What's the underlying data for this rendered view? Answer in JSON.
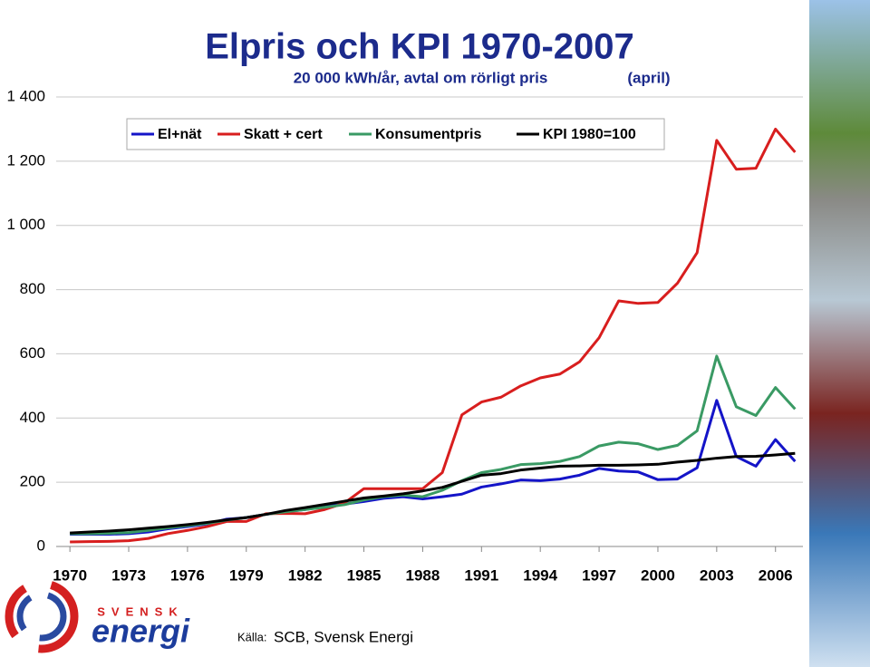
{
  "chart_data": {
    "type": "line",
    "title": "Elpris och KPI 1970-2007",
    "subtitle": "20 000 kWh/år, avtal om rörligt pris",
    "annotation": "(april)",
    "x": [
      1970,
      1971,
      1972,
      1973,
      1974,
      1975,
      1976,
      1977,
      1978,
      1979,
      1980,
      1981,
      1982,
      1983,
      1984,
      1985,
      1986,
      1987,
      1988,
      1989,
      1990,
      1991,
      1992,
      1993,
      1994,
      1995,
      1996,
      1997,
      1998,
      1999,
      2000,
      2001,
      2002,
      2003,
      2004,
      2005,
      2006,
      2007
    ],
    "series": [
      {
        "name": "El+nät",
        "color": "#1414c8",
        "values": [
          38,
          38,
          38,
          40,
          45,
          55,
          62,
          70,
          85,
          90,
          100,
          108,
          115,
          125,
          132,
          140,
          150,
          155,
          148,
          155,
          163,
          185,
          195,
          207,
          205,
          210,
          222,
          243,
          235,
          232,
          208,
          210,
          245,
          455,
          280,
          250,
          333,
          265
        ]
      },
      {
        "name": "Skatt + cert",
        "color": "#d81e1e",
        "values": [
          14,
          15,
          16,
          18,
          25,
          40,
          50,
          62,
          78,
          78,
          102,
          103,
          102,
          115,
          135,
          180,
          180,
          180,
          180,
          230,
          410,
          450,
          465,
          500,
          525,
          537,
          575,
          650,
          765,
          757,
          760,
          820,
          915,
          1265,
          1175,
          1178,
          1300,
          1228
        ]
      },
      {
        "name": "Konsumentpris",
        "color": "#3a9a64",
        "values": [
          40,
          40,
          41,
          43,
          50,
          58,
          65,
          72,
          82,
          90,
          100,
          108,
          115,
          122,
          130,
          145,
          155,
          160,
          155,
          175,
          205,
          230,
          240,
          255,
          258,
          265,
          280,
          313,
          325,
          320,
          302,
          315,
          360,
          593,
          435,
          408,
          495,
          428
        ]
      },
      {
        "name": "KPI 1980=100",
        "color": "#000000",
        "values": [
          42,
          45,
          48,
          52,
          57,
          62,
          68,
          75,
          83,
          90,
          100,
          112,
          121,
          131,
          141,
          151,
          157,
          164,
          173,
          184,
          203,
          222,
          227,
          238,
          244,
          250,
          251,
          253,
          253,
          254,
          256,
          263,
          268,
          275,
          280,
          281,
          285,
          290
        ]
      }
    ],
    "xlim": [
      1969.3,
      2007.4
    ],
    "xticks": [
      1970,
      1973,
      1976,
      1979,
      1982,
      1985,
      1988,
      1991,
      1994,
      1997,
      2000,
      2003,
      2006
    ],
    "ylim": [
      0,
      1400
    ],
    "yticks": [
      0,
      200,
      400,
      600,
      800,
      {
        "value": 1000,
        "label": "1 000"
      },
      {
        "value": 1200,
        "label": "1 200"
      },
      {
        "value": 1400,
        "label": "1 400"
      }
    ],
    "grid": true
  },
  "source": {
    "label": "Källa:",
    "text": "SCB, Svensk Energi"
  },
  "logo": {
    "top": "SVENSK",
    "bottom": "energi"
  }
}
